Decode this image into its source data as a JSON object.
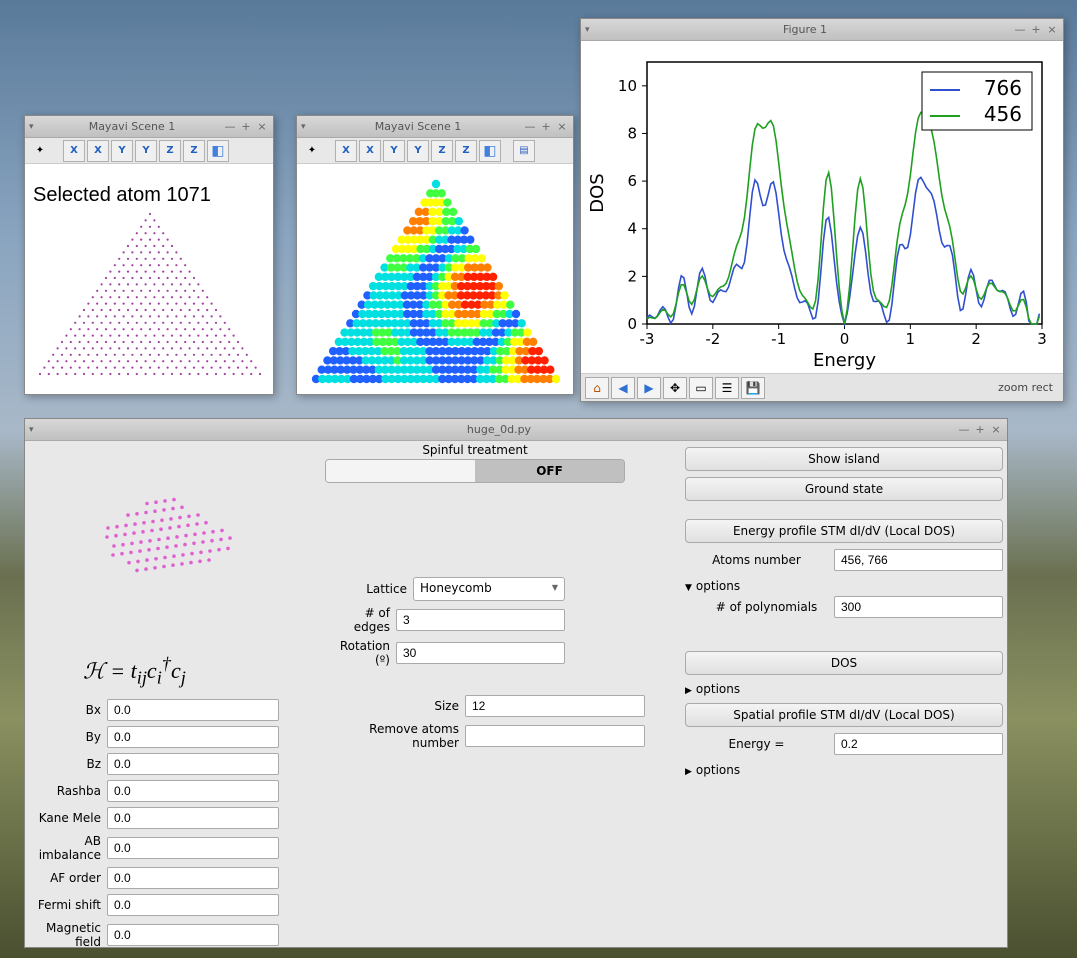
{
  "mayavi1": {
    "title": "Mayavi Scene 1",
    "toolbar_labels": [
      "X",
      "X",
      "Y",
      "Y",
      "Z",
      "Z"
    ],
    "annotation": "Selected atom 1071",
    "point_color": "#a040a0",
    "bg": "#ffffff"
  },
  "mayavi2": {
    "title": "Mayavi Scene 1",
    "toolbar_labels": [
      "X",
      "X",
      "Y",
      "Y",
      "Z",
      "Z"
    ],
    "colors": [
      "#2060ff",
      "#00e0e0",
      "#40ff40",
      "#ffff00",
      "#ff8000",
      "#ff2000"
    ],
    "bg": "#ffffff"
  },
  "figure1": {
    "title": "Figure 1",
    "xlabel": "Energy",
    "ylabel": "DOS",
    "xlim": [
      -3,
      3
    ],
    "ylim": [
      0,
      11
    ],
    "xticks": [
      -3,
      -2,
      -1,
      0,
      1,
      2,
      3
    ],
    "yticks": [
      0,
      2,
      4,
      6,
      8,
      10
    ],
    "legend": [
      "766",
      "456"
    ],
    "series_colors": [
      "#3050d0",
      "#20a020"
    ],
    "status": "zoom rect",
    "grid_color": "#ffffff",
    "axis_color": "#000000"
  },
  "main": {
    "title": "huge_0d.py",
    "spinful_label": "Spinful treatment",
    "toggle_state": "OFF",
    "hamiltonian": "ℋ = t_{ij} c_i† c_j",
    "left_params": [
      {
        "label": "Bx",
        "value": "0.0"
      },
      {
        "label": "By",
        "value": "0.0"
      },
      {
        "label": "Bz",
        "value": "0.0"
      },
      {
        "label": "Rashba",
        "value": "0.0"
      },
      {
        "label": "Kane Mele",
        "value": "0.0"
      },
      {
        "label": "AB imbalance",
        "value": "0.0"
      },
      {
        "label": "AF order",
        "value": "0.0"
      },
      {
        "label": "Fermi shift",
        "value": "0.0"
      },
      {
        "label": "Magnetic field",
        "value": "0.0"
      }
    ],
    "lattice_label": "Lattice",
    "lattice_value": "Honeycomb",
    "edges_label": "# of edges",
    "edges_value": "3",
    "rotation_label": "Rotation (º)",
    "rotation_value": "30",
    "size_label": "Size",
    "size_value": "12",
    "remove_label": "Remove atoms number",
    "remove_value": "",
    "show_island": "Show island",
    "ground_state": "Ground state",
    "energy_profile": "Energy profile STM dI/dV (Local DOS)",
    "atoms_number_label": "Atoms number",
    "atoms_number_value": "456, 766",
    "options_label": "options",
    "polynomials_label": "# of polynomials",
    "polynomials_value": "300",
    "dos_btn": "DOS",
    "spatial_profile": "Spatial profile STM dI/dV (Local DOS)",
    "energy_eq_label": "Energy =",
    "energy_eq_value": "0.2",
    "preview_color": "#e060d0"
  }
}
